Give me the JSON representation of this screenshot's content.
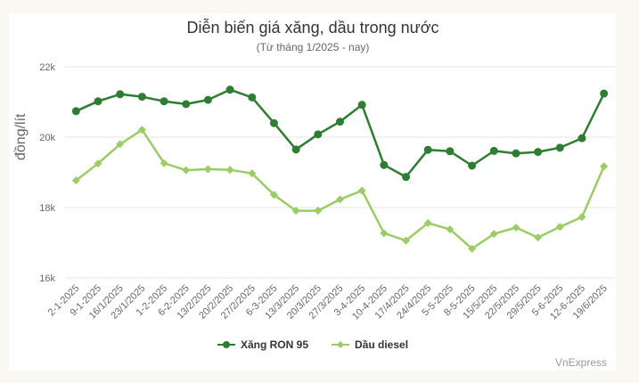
{
  "header": {
    "title": "Diễn biến giá xăng, dầu trong nước",
    "subtitle": "(Từ tháng 1/2025 - nay)"
  },
  "footer": {
    "credit": "VnExpress"
  },
  "colors": {
    "ron95": "#2e7d32",
    "diesel": "#9ccc65",
    "grid": "#e6e6e6",
    "background": "#faf8f3",
    "card": "#ffffff"
  },
  "legend": [
    {
      "label": "Xăng RON 95",
      "color": "#2e7d32",
      "marker": "circle"
    },
    {
      "label": "Dầu diesel",
      "color": "#9ccc65",
      "marker": "diamond"
    }
  ],
  "chart_data": {
    "type": "line",
    "title": "Diễn biến giá xăng, dầu trong nước",
    "subtitle": "(Từ tháng 1/2025 - nay)",
    "xlabel": "",
    "ylabel": "đồng/lít",
    "ylim": [
      16000,
      22000
    ],
    "yticks": [
      16000,
      18000,
      20000,
      22000
    ],
    "ytick_labels": [
      "16k",
      "18k",
      "20k",
      "22k"
    ],
    "grid": true,
    "legend_position": "bottom",
    "categories": [
      "2-1-2025",
      "9-1-2025",
      "16/1/2025",
      "23/1/2025",
      "1-2-2025",
      "6-2-2025",
      "13/2/2025",
      "20/2/2025",
      "27/2/2025",
      "6-3-2025",
      "13/3/2025",
      "20/3/2025",
      "27/3/2025",
      "3-4-2025",
      "10-4-2025",
      "17/4/2025",
      "24/4/2025",
      "5-5-2025",
      "8-5-2025",
      "15/5/2025",
      "22/5/2025",
      "29/5/2025",
      "5-6-2025",
      "12-6-2025",
      "19/6/2025"
    ],
    "series": [
      {
        "name": "Xăng RON 95",
        "color": "#2e7d32",
        "marker": "circle",
        "values": [
          20740,
          21020,
          21220,
          21150,
          21020,
          20940,
          21060,
          21350,
          21130,
          20400,
          19650,
          20080,
          20440,
          20920,
          19210,
          18870,
          19640,
          19600,
          19190,
          19610,
          19540,
          19580,
          19700,
          19970,
          21240
        ]
      },
      {
        "name": "Dầu diesel",
        "color": "#9ccc65",
        "marker": "diamond",
        "values": [
          18770,
          19250,
          19800,
          20210,
          19260,
          19060,
          19090,
          19070,
          18970,
          18360,
          17910,
          17910,
          18230,
          18480,
          17270,
          17060,
          17560,
          17380,
          16830,
          17250,
          17430,
          17150,
          17450,
          17730,
          19170
        ]
      }
    ]
  }
}
